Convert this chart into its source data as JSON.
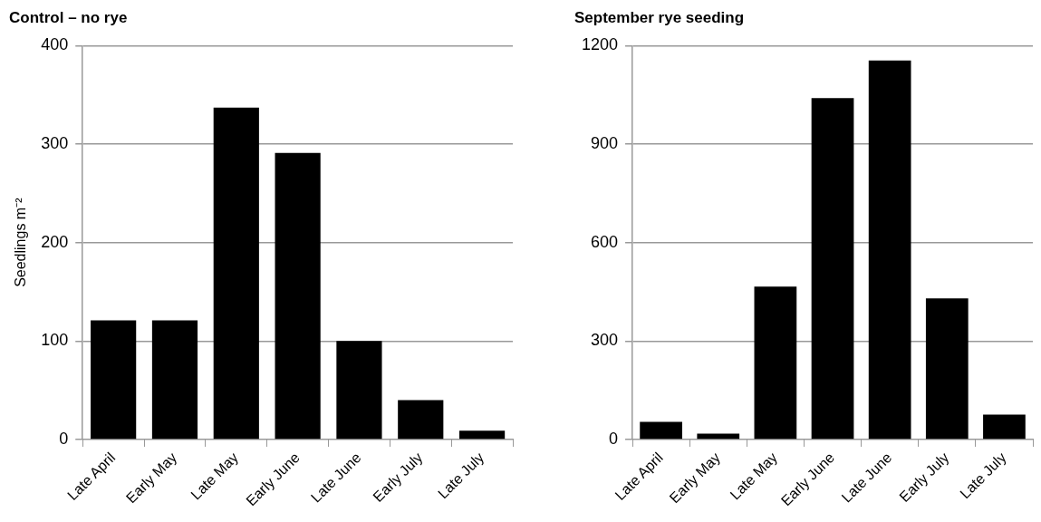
{
  "chart_data": [
    {
      "type": "bar",
      "title": "Control – no rye",
      "ylabel": "Seedlings m⁻²",
      "categories": [
        "Late April",
        "Early May",
        "Late May",
        "Early June",
        "Late June",
        "Early July",
        "Late July"
      ],
      "values": [
        121,
        121,
        337,
        291,
        100,
        40,
        9
      ],
      "color": "#000000",
      "ylim": [
        0,
        400
      ],
      "yticks": [
        0,
        100,
        200,
        300,
        400
      ],
      "grid": "y"
    },
    {
      "type": "bar",
      "title": "September rye seeding",
      "categories": [
        "Late April",
        "Early May",
        "Late May",
        "Early June",
        "Late June",
        "Early July",
        "Late July"
      ],
      "values": [
        54,
        18,
        466,
        1040,
        1155,
        430,
        76
      ],
      "color": "#000000",
      "ylim": [
        0,
        1200
      ],
      "yticks": [
        0,
        300,
        600,
        900,
        1200
      ],
      "grid": "y"
    }
  ]
}
